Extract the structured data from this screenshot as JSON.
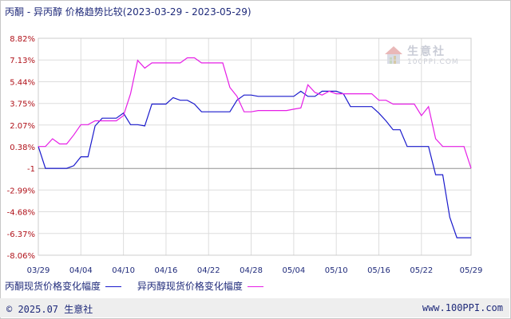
{
  "header": {
    "title": "丙酮 - 异丙醇 价格趋势比较",
    "date_range": "(2023-03-29 - 2023-05-29)"
  },
  "watermark": {
    "text": "生意社",
    "sub": "100PPI.COM"
  },
  "footer": {
    "copyright": "© 2025.07 生意社",
    "url": "www.100PPI.com"
  },
  "colors": {
    "series_1": "#1a1acc",
    "series_2": "#e61ee6",
    "y_tick": "#b0121a",
    "text": "#1f2a7a",
    "grid": "#dddddd",
    "zero_line": "#999999"
  },
  "chart_data": {
    "type": "line",
    "title": "丙酮 - 异丙醇 价格趋势比较",
    "xlabel": "",
    "ylabel": "",
    "ylim": [
      -8.06,
      8.82
    ],
    "y_ticks": [
      "8.82%",
      "7.13%",
      "5.44%",
      "3.75%",
      "2.07%",
      "0.38%",
      "-1",
      "-2.99%",
      "-4.68%",
      "-6.37%",
      "-8.06%"
    ],
    "y_tick_values": [
      8.82,
      7.13,
      5.44,
      3.75,
      2.07,
      0.38,
      -1.31,
      -2.99,
      -4.68,
      -6.37,
      -8.06
    ],
    "x_ticks": [
      "03/29",
      "04/04",
      "04/10",
      "04/16",
      "04/22",
      "04/28",
      "05/04",
      "05/10",
      "05/16",
      "05/22",
      "05/29"
    ],
    "x_tick_days": [
      0,
      6,
      12,
      18,
      24,
      30,
      36,
      42,
      48,
      54,
      61
    ],
    "zero_line": -1.31,
    "grid": true,
    "legend_position": "bottom",
    "series": [
      {
        "name": "丙酮现货价格变化幅度",
        "points": [
          [
            0,
            0.4
          ],
          [
            1,
            -1.3
          ],
          [
            2,
            -1.3
          ],
          [
            3,
            -1.3
          ],
          [
            4,
            -1.3
          ],
          [
            5,
            -1.1
          ],
          [
            6,
            -0.4
          ],
          [
            7,
            -0.4
          ],
          [
            8,
            2.0
          ],
          [
            9,
            2.6
          ],
          [
            10,
            2.6
          ],
          [
            11,
            2.6
          ],
          [
            12,
            3.0
          ],
          [
            13,
            2.1
          ],
          [
            14,
            2.1
          ],
          [
            15,
            2.0
          ],
          [
            16,
            3.7
          ],
          [
            17,
            3.7
          ],
          [
            18,
            3.7
          ],
          [
            19,
            4.2
          ],
          [
            20,
            4.0
          ],
          [
            21,
            4.0
          ],
          [
            22,
            3.7
          ],
          [
            23,
            3.1
          ],
          [
            24,
            3.1
          ],
          [
            25,
            3.1
          ],
          [
            26,
            3.1
          ],
          [
            27,
            3.1
          ],
          [
            28,
            4.0
          ],
          [
            29,
            4.4
          ],
          [
            30,
            4.4
          ],
          [
            31,
            4.3
          ],
          [
            32,
            4.3
          ],
          [
            33,
            4.3
          ],
          [
            34,
            4.3
          ],
          [
            35,
            4.3
          ],
          [
            36,
            4.3
          ],
          [
            37,
            4.7
          ],
          [
            38,
            4.3
          ],
          [
            39,
            4.3
          ],
          [
            40,
            4.7
          ],
          [
            41,
            4.7
          ],
          [
            42,
            4.7
          ],
          [
            43,
            4.5
          ],
          [
            44,
            3.5
          ],
          [
            45,
            3.5
          ],
          [
            46,
            3.5
          ],
          [
            47,
            3.5
          ],
          [
            48,
            3.0
          ],
          [
            49,
            2.4
          ],
          [
            50,
            1.7
          ],
          [
            51,
            1.7
          ],
          [
            52,
            0.4
          ],
          [
            53,
            0.4
          ],
          [
            54,
            0.4
          ],
          [
            55,
            0.4
          ],
          [
            56,
            -1.8
          ],
          [
            57,
            -1.8
          ],
          [
            58,
            -5.1
          ],
          [
            59,
            -6.7
          ],
          [
            60,
            -6.7
          ],
          [
            61,
            -6.7
          ]
        ]
      },
      {
        "name": "异丙醇现货价格变化幅度",
        "points": [
          [
            0,
            0.4
          ],
          [
            1,
            0.4
          ],
          [
            2,
            1.0
          ],
          [
            3,
            0.6
          ],
          [
            4,
            0.6
          ],
          [
            5,
            1.3
          ],
          [
            6,
            2.1
          ],
          [
            7,
            2.1
          ],
          [
            8,
            2.4
          ],
          [
            9,
            2.4
          ],
          [
            10,
            2.4
          ],
          [
            11,
            2.4
          ],
          [
            12,
            2.8
          ],
          [
            13,
            4.5
          ],
          [
            14,
            7.1
          ],
          [
            15,
            6.5
          ],
          [
            16,
            6.9
          ],
          [
            17,
            6.9
          ],
          [
            18,
            6.9
          ],
          [
            19,
            6.9
          ],
          [
            20,
            6.9
          ],
          [
            21,
            7.3
          ],
          [
            22,
            7.3
          ],
          [
            23,
            6.9
          ],
          [
            24,
            6.9
          ],
          [
            25,
            6.9
          ],
          [
            26,
            6.9
          ],
          [
            27,
            5.0
          ],
          [
            28,
            4.3
          ],
          [
            29,
            3.1
          ],
          [
            30,
            3.1
          ],
          [
            31,
            3.2
          ],
          [
            32,
            3.2
          ],
          [
            33,
            3.2
          ],
          [
            34,
            3.2
          ],
          [
            35,
            3.2
          ],
          [
            36,
            3.3
          ],
          [
            37,
            3.4
          ],
          [
            38,
            5.2
          ],
          [
            39,
            4.6
          ],
          [
            40,
            4.4
          ],
          [
            41,
            4.7
          ],
          [
            42,
            4.5
          ],
          [
            43,
            4.5
          ],
          [
            44,
            4.5
          ],
          [
            45,
            4.5
          ],
          [
            46,
            4.5
          ],
          [
            47,
            4.5
          ],
          [
            48,
            4.0
          ],
          [
            49,
            4.0
          ],
          [
            50,
            3.7
          ],
          [
            51,
            3.7
          ],
          [
            52,
            3.7
          ],
          [
            53,
            3.7
          ],
          [
            54,
            2.8
          ],
          [
            55,
            3.5
          ],
          [
            56,
            1.0
          ],
          [
            57,
            0.4
          ],
          [
            58,
            0.4
          ],
          [
            59,
            0.4
          ],
          [
            60,
            0.4
          ],
          [
            61,
            -1.3
          ]
        ]
      }
    ]
  }
}
